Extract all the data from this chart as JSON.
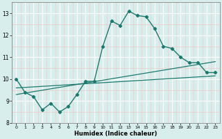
{
  "xlabel": "Humidex (Indice chaleur)",
  "bg_color": "#d8eeed",
  "grid_major_color": "#ffffff",
  "grid_minor_color": "#f0c8c8",
  "line_color": "#1a7a6e",
  "xlim": [
    -0.5,
    23.5
  ],
  "ylim": [
    8,
    13.5
  ],
  "yticks": [
    8,
    9,
    10,
    11,
    12,
    13
  ],
  "xticks": [
    0,
    1,
    2,
    3,
    4,
    5,
    6,
    7,
    8,
    9,
    10,
    11,
    12,
    13,
    14,
    15,
    16,
    17,
    18,
    19,
    20,
    21,
    22,
    23
  ],
  "main_x": [
    0,
    1,
    2,
    3,
    4,
    5,
    6,
    7,
    8,
    9,
    10,
    11,
    12,
    13,
    14,
    15,
    16,
    17,
    18,
    19,
    20,
    21,
    22,
    23
  ],
  "main_y": [
    10.0,
    9.4,
    9.2,
    8.6,
    8.9,
    8.5,
    8.75,
    9.3,
    9.9,
    9.9,
    11.5,
    12.65,
    12.45,
    13.1,
    12.9,
    12.85,
    12.3,
    11.5,
    11.4,
    11.0,
    10.75,
    10.75,
    10.3,
    10.3
  ],
  "line2_x": [
    0,
    23
  ],
  "line2_y": [
    9.3,
    10.8
  ],
  "line3_x": [
    0,
    23
  ],
  "line3_y": [
    9.6,
    10.15
  ]
}
